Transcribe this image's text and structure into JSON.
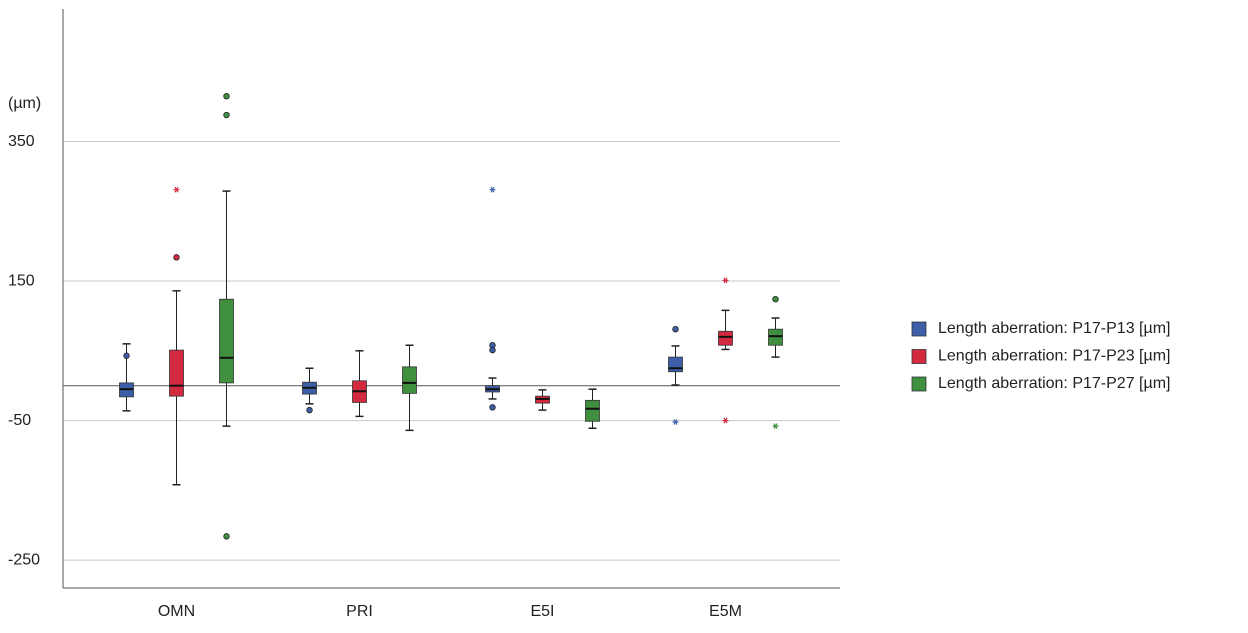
{
  "chart_data": {
    "type": "box",
    "y_label": "(µm)",
    "categories": [
      "OMN",
      "PRI",
      "E5I",
      "E5M"
    ],
    "ylim": [
      -290,
      540
    ],
    "yticks": [
      350,
      150,
      -50,
      -250
    ],
    "grid": true,
    "reference_line": 0,
    "legend": "right",
    "series": [
      {
        "name": "Length aberration: P17-P13 [µm]",
        "color": "#3d5fa8",
        "values": [
          {
            "low": -36,
            "q1": -16,
            "median": -5,
            "q3": 4,
            "high": 60,
            "outliers": [
              43
            ],
            "extremes": []
          },
          {
            "low": -26,
            "q1": -12,
            "median": -3,
            "q3": 5,
            "high": 25,
            "outliers": [
              -35
            ],
            "extremes": []
          },
          {
            "low": -19,
            "q1": -9,
            "median": -5,
            "q3": 0,
            "high": 11,
            "outliers": [
              58,
              51,
              -31
            ],
            "extremes": [
              281
            ]
          },
          {
            "low": 1,
            "q1": 20,
            "median": 25,
            "q3": 41,
            "high": 57,
            "outliers": [
              81
            ],
            "extremes": [
              -52
            ]
          }
        ]
      },
      {
        "name": "Length aberration: P17-P23 [µm]",
        "color": "#d42a40",
        "values": [
          {
            "low": -142,
            "q1": -15,
            "median": 0,
            "q3": 51,
            "high": 136,
            "outliers": [
              184
            ],
            "extremes": [
              281
            ]
          },
          {
            "low": -44,
            "q1": -24,
            "median": -8,
            "q3": 7,
            "high": 50,
            "outliers": [],
            "extremes": []
          },
          {
            "low": -35,
            "q1": -25,
            "median": -19,
            "q3": -15,
            "high": -6,
            "outliers": [],
            "extremes": []
          },
          {
            "low": 52,
            "q1": 58,
            "median": 70,
            "q3": 78,
            "high": 108,
            "outliers": [],
            "extremes": [
              151,
              -50
            ]
          }
        ]
      },
      {
        "name": "Length aberration: P17-P27 [µm]",
        "color": "#3f8f3f",
        "values": [
          {
            "low": -58,
            "q1": 4,
            "median": 40,
            "q3": 124,
            "high": 279,
            "outliers": [
              415,
              388,
              -216
            ],
            "extremes": []
          },
          {
            "low": -64,
            "q1": -11,
            "median": 4,
            "q3": 27,
            "high": 58,
            "outliers": [],
            "extremes": []
          },
          {
            "low": -61,
            "q1": -51,
            "median": -33,
            "q3": -21,
            "high": -5,
            "outliers": [],
            "extremes": []
          },
          {
            "low": 41,
            "q1": 58,
            "median": 71,
            "q3": 81,
            "high": 97,
            "outliers": [
              124
            ],
            "extremes": [
              -58
            ]
          }
        ]
      }
    ]
  }
}
